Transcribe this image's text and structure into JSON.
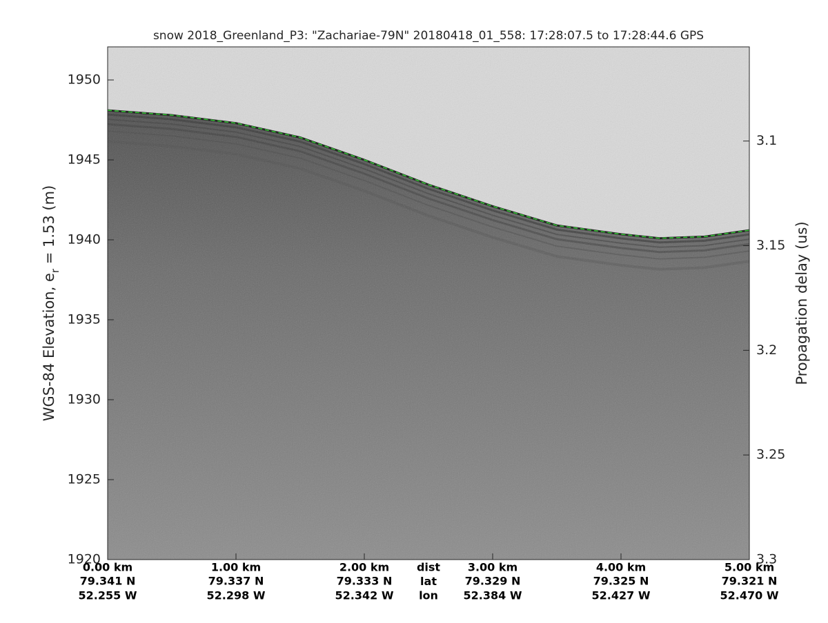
{
  "chart_data": {
    "type": "echogram",
    "title": "snow 2018_Greenland_P3: \"Zachariae-79N\"  20180418_01_558: 17:28:07.5 to 17:28:44.6 GPS",
    "ylabel_parts": [
      "WGS-84 Elevation, e",
      "r",
      " = 1.53 (m)"
    ],
    "y2label": "Propagation delay (us)",
    "ylim": [
      1920,
      1952.07
    ],
    "yticks": [
      1920,
      1925,
      1930,
      1935,
      1940,
      1945,
      1950
    ],
    "y2lim": [
      3.3,
      3.055
    ],
    "y2ticks": [
      3.1,
      3.15,
      3.2,
      3.25,
      3.3
    ],
    "xlim": [
      0,
      5
    ],
    "xticks": [
      {
        "value": 0,
        "label": "0.00 km"
      },
      {
        "value": 1,
        "label": "1.00 km"
      },
      {
        "value": 2,
        "label": "2.00 km"
      },
      {
        "value": 3,
        "label": "3.00 km"
      },
      {
        "value": 4,
        "label": "4.00 km"
      },
      {
        "value": 5,
        "label": "5.00 km"
      }
    ],
    "lat_labels": [
      "79.341 N",
      "79.337 N",
      "79.333 N",
      "79.329 N",
      "79.325 N",
      "79.321 N"
    ],
    "lon_labels": [
      "52.255 W",
      "52.298 W",
      "52.342 W",
      "52.384 W",
      "52.427 W",
      "52.470 W"
    ],
    "row_names": [
      "dist",
      "lat",
      "lon"
    ],
    "row_names_x": 2.5,
    "series": [
      {
        "name": "surface",
        "color": "#22cc22",
        "x": [
          0,
          0.5,
          1,
          1.5,
          2,
          2.5,
          3,
          3.5,
          4,
          4.3,
          4.65,
          5
        ],
        "values": [
          1948.1,
          1947.8,
          1947.3,
          1946.4,
          1945.0,
          1943.45,
          1942.1,
          1940.9,
          1940.35,
          1940.1,
          1940.2,
          1940.6
        ]
      }
    ]
  }
}
